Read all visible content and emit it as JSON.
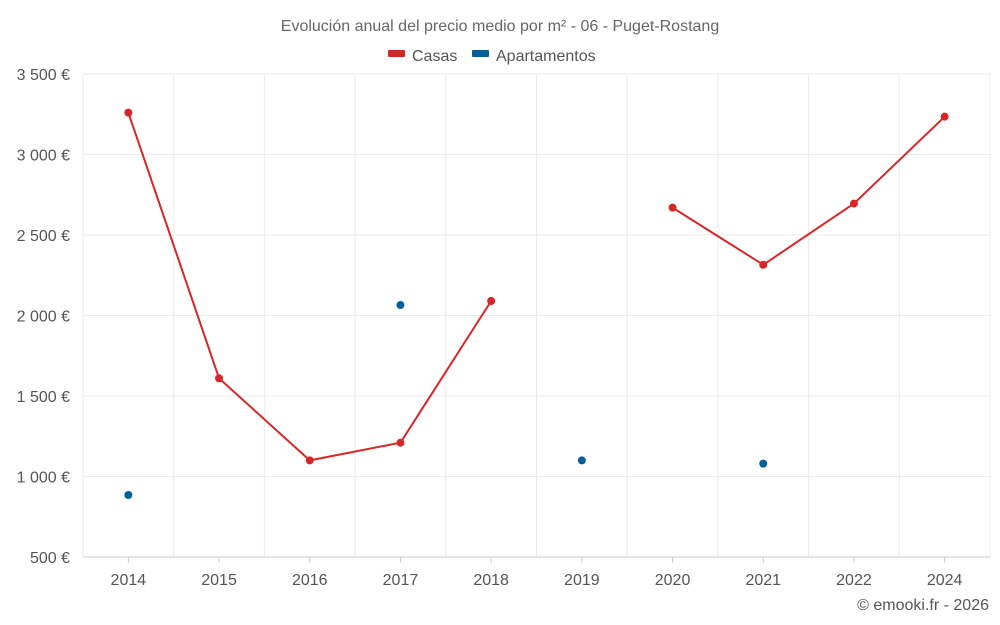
{
  "chart_data": {
    "type": "line",
    "title": "Evolución anual del precio medio por m² - 06 - Puget-Rostang",
    "categories": [
      "2014",
      "2015",
      "2016",
      "2017",
      "2018",
      "2019",
      "2020",
      "2021",
      "2022",
      "2024"
    ],
    "series": [
      {
        "name": "Casas",
        "color": "#d62728",
        "values": [
          3260,
          1610,
          1100,
          1210,
          2090,
          null,
          2670,
          2315,
          2695,
          3235
        ]
      },
      {
        "name": "Apartamentos",
        "color": "#00609c",
        "values": [
          885,
          null,
          null,
          2065,
          null,
          1100,
          null,
          1080,
          null,
          null
        ]
      }
    ],
    "ylim": [
      500,
      3500
    ],
    "yticks": [
      500,
      1000,
      1500,
      2000,
      2500,
      3000,
      3500
    ],
    "ytick_labels": [
      "500 €",
      "1 000 €",
      "1 500 €",
      "2 000 €",
      "2 500 €",
      "3 000 €",
      "3 500 €"
    ],
    "xlabel": "",
    "ylabel": "",
    "grid": true,
    "legend": "top-center"
  },
  "credit": "© emooki.fr - 2026"
}
